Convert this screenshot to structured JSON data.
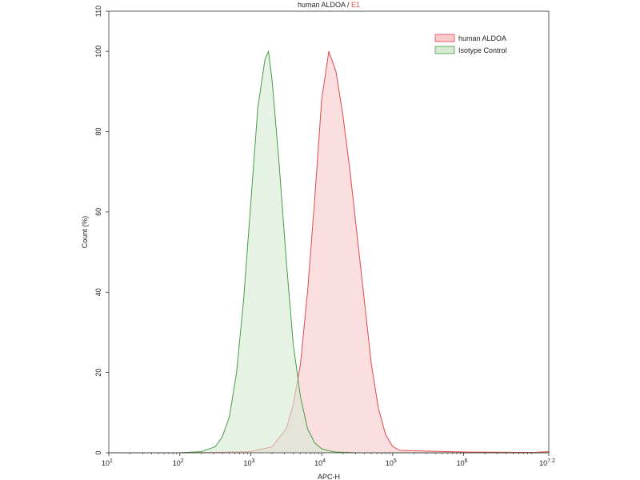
{
  "chart_data": {
    "type": "area",
    "title": "human ALDOA",
    "title_separator": " / ",
    "title_sample": "E1",
    "title_sample_color": "#e8474c",
    "xlabel": "APC-H",
    "ylabel": "Count (%)",
    "x_scale": "log10",
    "xlim": [
      10,
      15848931.92
    ],
    "ylim": [
      0,
      110
    ],
    "x_ticks": [
      {
        "base": "10",
        "exp": "1",
        "value": 10
      },
      {
        "base": "10",
        "exp": "2",
        "value": 100
      },
      {
        "base": "10",
        "exp": "3",
        "value": 1000
      },
      {
        "base": "10",
        "exp": "4",
        "value": 10000
      },
      {
        "base": "10",
        "exp": "5",
        "value": 100000
      },
      {
        "base": "10",
        "exp": "6",
        "value": 1000000
      },
      {
        "base": "10",
        "exp": "7.2",
        "value": 15848931.92
      }
    ],
    "y_ticks": [
      "0",
      "20",
      "40",
      "60",
      "80",
      "100",
      "110"
    ],
    "y_tick_values": [
      0,
      20,
      40,
      60,
      80,
      100,
      110
    ],
    "grid": false,
    "legend_position": "top-right",
    "series": [
      {
        "name": "human ALDOA",
        "stroke": "#e0474c",
        "fill": "#f9c9cb",
        "x": [
          10,
          100,
          316,
          1000,
          1995,
          3162,
          3981,
          5012,
          6310,
          7943,
          10000,
          12589,
          15849,
          19953,
          25119,
          31623,
          39811,
          50119,
          63096,
          79433,
          100000,
          125893,
          1000000,
          10000000,
          15848931.92
        ],
        "y": [
          0,
          0,
          0.1,
          0.3,
          1.5,
          6,
          12,
          22,
          40,
          63,
          88,
          100,
          95,
          84,
          70,
          54,
          38,
          22,
          11,
          4.5,
          1.6,
          0.6,
          0.2,
          0.1,
          0.3
        ]
      },
      {
        "name": "Isotype Control",
        "stroke": "#4a9a48",
        "fill": "#d6ead2",
        "x": [
          10,
          100,
          200,
          316,
          398,
          501,
          631,
          794,
          1000,
          1259,
          1585,
          1778,
          1995,
          2512,
          3162,
          3981,
          5012,
          6310,
          7943,
          10000,
          12589,
          15849,
          31623,
          15848931.92
        ],
        "y": [
          0,
          0,
          0.3,
          1.5,
          4,
          9,
          20,
          38,
          62,
          86,
          98,
          100,
          93,
          72,
          48,
          27,
          14,
          6,
          2.5,
          1,
          0.5,
          0.2,
          0,
          0
        ]
      }
    ]
  }
}
